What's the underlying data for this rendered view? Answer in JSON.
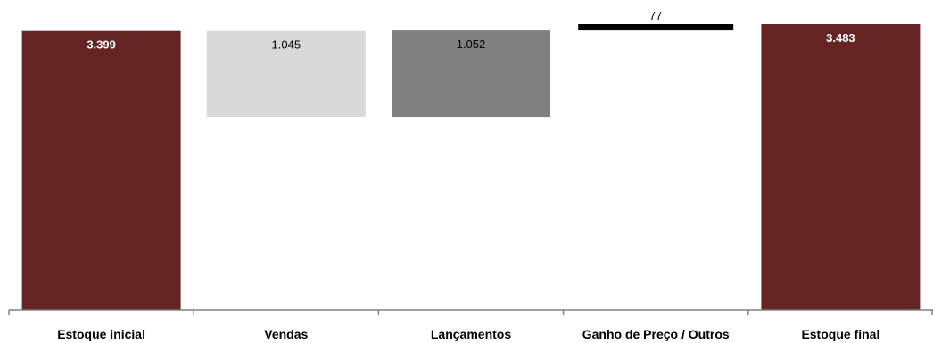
{
  "chart_data": {
    "type": "bar",
    "subtype": "waterfall",
    "title": "",
    "xlabel": "",
    "ylabel": "",
    "categories": [
      "Estoque inicial",
      "Vendas",
      "Lançamentos",
      "Ganho de Preço / Outros",
      "Estoque final"
    ],
    "values": [
      3399,
      -1045,
      1052,
      77,
      3483
    ],
    "data_labels": [
      "3.399",
      "1.045",
      "1.052",
      "77",
      "3.483"
    ],
    "bar_kinds": [
      "total",
      "decrease",
      "increase",
      "increase",
      "total"
    ],
    "colors": {
      "total": "#632423",
      "decrease": "#d9d9d9",
      "increase": "#808080",
      "other": "#000000",
      "axis": "#808080",
      "total_label": "#ffffff",
      "label": "#000000"
    },
    "ylim": [
      0,
      3483
    ],
    "grid": false,
    "legend": "none"
  }
}
